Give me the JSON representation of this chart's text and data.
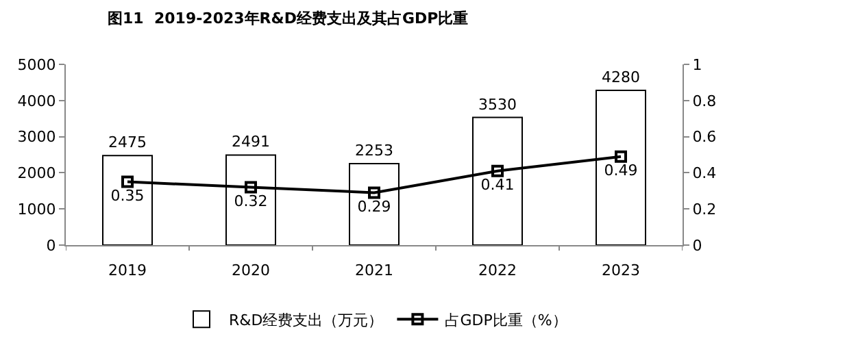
{
  "chart_data": {
    "type": "bar",
    "title": "图11  2019-2023年R&D经费支出及其占GDP比重",
    "categories": [
      "2019",
      "2020",
      "2021",
      "2022",
      "2023"
    ],
    "series": [
      {
        "name": "R&D经费支出（万元）",
        "color": "#ffffff",
        "values": [
          2475,
          2491,
          2253,
          3530,
          4280
        ]
      },
      {
        "name": "占GDP比重（%）",
        "type": "line",
        "axis": "y2",
        "color": "#000000",
        "marker": "square",
        "values": [
          0.35,
          0.32,
          0.29,
          0.41,
          0.49
        ]
      }
    ],
    "ylim": [
      0,
      5000
    ],
    "yticks": [
      0,
      1000,
      2000,
      3000,
      4000,
      5000
    ],
    "y2lim": [
      0,
      1
    ],
    "y2ticks": [
      0,
      0.2,
      0.4,
      0.6,
      0.8,
      1
    ],
    "data_labels": true,
    "grid": false,
    "legend": "bottom"
  }
}
